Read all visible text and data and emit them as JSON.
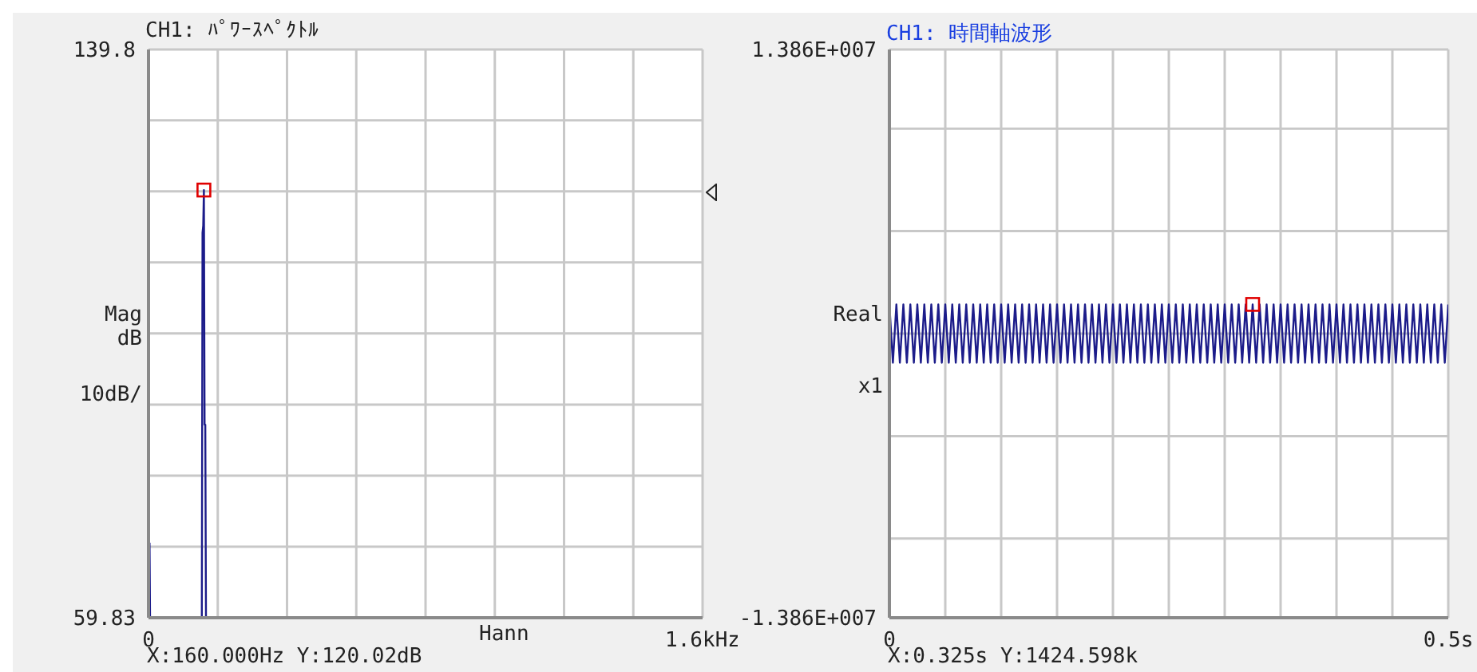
{
  "chart_data": [
    {
      "type": "line",
      "title": "CH1: ﾊﾟﾜｰｽﾍﾟｸﾄﾙ",
      "ylabel": "Mag dB 10dB/",
      "xlim": [
        0,
        1.6
      ],
      "ylim": [
        59.83,
        139.8
      ],
      "xticks": [
        0,
        {
          "value": 0.2,
          "label": null
        },
        {
          "value": 0.4,
          "label": null
        },
        {
          "value": 0.6,
          "label": null
        },
        {
          "value": 0.8,
          "label": null
        },
        {
          "value": 1,
          "label": null
        },
        {
          "value": 1.2,
          "label": null
        },
        {
          "value": 1.4,
          "label": null
        },
        {
          "value": 1.6,
          "label": "1.6kHz"
        }
      ],
      "yticks": [
        59.83,
        {
          "value": 69.83,
          "label": null
        },
        {
          "value": 79.83,
          "label": null
        },
        {
          "value": 89.83,
          "label": null
        },
        {
          "value": 99.83,
          "label": null
        },
        {
          "value": 109.83,
          "label": null
        },
        {
          "value": 119.83,
          "label": null
        },
        {
          "value": 129.83,
          "label": null
        },
        139.8
      ],
      "grid": true,
      "annotations": [
        "Hann",
        "X:160.000Hz Y:120.02dB"
      ],
      "series": [
        {
          "color": "#1c1c8a",
          "marker": "none",
          "x": [
            0.003,
            0.0045,
            0.006,
            0.15,
            0.154,
            0.156,
            0.158,
            0.16,
            0.162,
            0.164,
            0.166,
            1.6
          ],
          "values": [
            70.4,
            59.83,
            59.83,
            59.83,
            59.83,
            114,
            115,
            120.02,
            87,
            87,
            59.83,
            59.83
          ]
        },
        {
          "type": "scatter",
          "color": "#e00000",
          "marker": "square",
          "x": [
            0.16
          ],
          "values": [
            120.02
          ]
        }
      ]
    },
    {
      "type": "line",
      "title": "CH1: 時間軸波形",
      "ylabel": "Real x1",
      "xlim": [
        0,
        0.5
      ],
      "ylim": [
        -13860000,
        13860000
      ],
      "xticks": [
        0,
        {
          "value": 0.05,
          "label": null
        },
        {
          "value": 0.1,
          "label": null
        },
        {
          "value": 0.15,
          "label": null
        },
        {
          "value": 0.2,
          "label": null
        },
        {
          "value": 0.25,
          "label": null
        },
        {
          "value": 0.3,
          "label": null
        },
        {
          "value": 0.35,
          "label": null
        },
        {
          "value": 0.4,
          "label": null
        },
        {
          "value": 0.45,
          "label": null
        },
        {
          "value": 0.5,
          "label": "0.5s"
        }
      ],
      "yticks": [
        {
          "value": -13860000,
          "label": "-1.386E+007"
        },
        {
          "value": -10000000,
          "label": null
        },
        {
          "value": -5000000,
          "label": null
        },
        {
          "value": 0,
          "label": null
        },
        {
          "value": 5000000,
          "label": null
        },
        {
          "value": 10000000,
          "label": null
        },
        {
          "value": 13860000,
          "label": "1.386E+007"
        }
      ],
      "grid": true,
      "annotations": [
        "X:0.325s Y:1424.598k"
      ],
      "series": [
        {
          "color": "#1c1c8a",
          "marker": "none",
          "x": [
            0,
            0.003125,
            0.00625,
            0.009375,
            0.0125,
            0.015625,
            0.01875,
            0.021875,
            0.025,
            0.028125,
            0.03125,
            0.034375,
            0.0375,
            0.040625,
            0.04375,
            0.046875,
            0.05,
            0.053125,
            0.05625,
            0.059375,
            0.0625,
            0.065625,
            0.06875,
            0.071875,
            0.075,
            0.078125,
            0.08125,
            0.084375,
            0.0875,
            0.090625,
            0.09375,
            0.096875,
            0.1,
            0.103125,
            0.10625,
            0.109375,
            0.1125,
            0.115625,
            0.11875,
            0.121875,
            0.125,
            0.128125,
            0.13125,
            0.134375,
            0.1375,
            0.140625,
            0.14375,
            0.146875,
            0.15,
            0.153125,
            0.15625,
            0.159375,
            0.1625,
            0.165625,
            0.16875,
            0.171875,
            0.175,
            0.178125,
            0.18125,
            0.184375,
            0.1875,
            0.190625,
            0.19375,
            0.196875,
            0.2,
            0.203125,
            0.20625,
            0.209375,
            0.2125,
            0.215625,
            0.21875,
            0.221875,
            0.225,
            0.228125,
            0.23125,
            0.234375,
            0.2375,
            0.240625,
            0.24375,
            0.246875,
            0.25,
            0.253125,
            0.25625,
            0.259375,
            0.2625,
            0.265625,
            0.26875,
            0.271875,
            0.275,
            0.278125,
            0.28125,
            0.284375,
            0.2875,
            0.290625,
            0.29375,
            0.296875,
            0.3,
            0.303125,
            0.30625,
            0.309375,
            0.3125,
            0.315625,
            0.31875,
            0.321875,
            0.325,
            0.328125,
            0.33125,
            0.334375,
            0.3375,
            0.340625,
            0.34375,
            0.346875,
            0.35,
            0.353125,
            0.35625,
            0.359375,
            0.3625,
            0.365625,
            0.36875,
            0.371875,
            0.375,
            0.378125,
            0.38125,
            0.384375,
            0.3875,
            0.390625,
            0.39375,
            0.396875,
            0.4,
            0.403125,
            0.40625,
            0.409375,
            0.4125,
            0.415625,
            0.41875,
            0.421875,
            0.425,
            0.428125,
            0.43125,
            0.434375,
            0.4375,
            0.440625,
            0.44375,
            0.446875,
            0.45,
            0.453125,
            0.45625,
            0.459375,
            0.4625,
            0.465625,
            0.46875,
            0.471875,
            0.475,
            0.478125,
            0.48125,
            0.484375,
            0.4875,
            0.490625,
            0.49375,
            0.496875,
            0.5
          ],
          "values": [
            1420000,
            -1420000,
            1420000,
            -1420000,
            1420000,
            -1420000,
            1420000,
            -1420000,
            1420000,
            -1420000,
            1420000,
            -1420000,
            1420000,
            -1420000,
            1420000,
            -1420000,
            1420000,
            -1420000,
            1420000,
            -1420000,
            1420000,
            -1420000,
            1420000,
            -1420000,
            1420000,
            -1420000,
            1420000,
            -1420000,
            1420000,
            -1420000,
            1420000,
            -1420000,
            1420000,
            -1420000,
            1420000,
            -1420000,
            1420000,
            -1420000,
            1420000,
            -1420000,
            1420000,
            -1420000,
            1420000,
            -1420000,
            1420000,
            -1420000,
            1420000,
            -1420000,
            1420000,
            -1420000,
            1420000,
            -1420000,
            1420000,
            -1420000,
            1420000,
            -1420000,
            1420000,
            -1420000,
            1420000,
            -1420000,
            1420000,
            -1420000,
            1420000,
            -1420000,
            1420000,
            -1420000,
            1420000,
            -1420000,
            1420000,
            -1420000,
            1420000,
            -1420000,
            1420000,
            -1420000,
            1420000,
            -1420000,
            1420000,
            -1420000,
            1420000,
            -1420000,
            1420000,
            -1420000,
            1420000,
            -1420000,
            1420000,
            -1420000,
            1420000,
            -1420000,
            1420000,
            -1420000,
            1420000,
            -1420000,
            1420000,
            -1420000,
            1420000,
            -1420000,
            1420000,
            -1420000,
            1420000,
            -1420000,
            1420000,
            -1420000,
            1420000,
            -1420000,
            1420000,
            -1420000,
            1420000,
            -1420000,
            1420000,
            -1420000,
            1420000,
            -1420000,
            1420000,
            -1420000,
            1420000,
            -1420000,
            1420000,
            -1420000,
            1420000,
            -1420000,
            1420000,
            -1420000,
            1420000,
            -1420000,
            1420000,
            -1420000,
            1420000,
            -1420000,
            1420000,
            -1420000,
            1420000,
            -1420000,
            1420000,
            -1420000,
            1420000,
            -1420000,
            1420000,
            -1420000,
            1420000,
            -1420000,
            1420000,
            -1420000,
            1420000,
            -1420000,
            1420000,
            -1420000,
            1420000,
            -1420000,
            1420000,
            -1420000,
            1420000,
            -1420000,
            1420000,
            -1420000,
            1420000,
            -1420000,
            1420000,
            -1420000,
            1420000,
            -1420000,
            1420000
          ]
        },
        {
          "type": "scatter",
          "color": "#e00000",
          "marker": "square",
          "x": [
            0.325
          ],
          "values": [
            1424598
          ]
        }
      ]
    }
  ]
}
